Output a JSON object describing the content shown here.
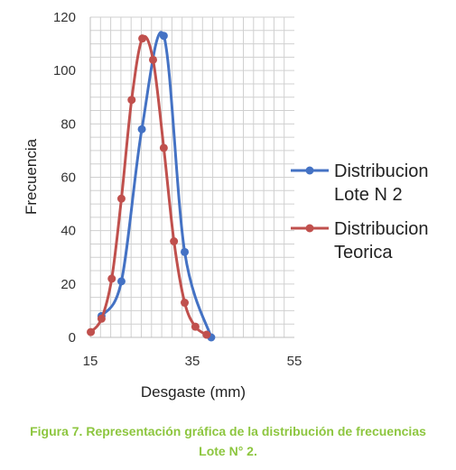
{
  "chart_data": {
    "type": "line",
    "title": "",
    "xlabel": "Desgaste (mm)",
    "ylabel": "Frecuencia",
    "xlim": [
      15,
      55
    ],
    "ylim": [
      0,
      120
    ],
    "xticks": [
      "15",
      "35",
      "55"
    ],
    "yticks": [
      "0",
      "20",
      "40",
      "60",
      "80",
      "100",
      "120"
    ],
    "grid": true,
    "smooth": true,
    "legend_position": "right",
    "series": [
      {
        "name": "Distribucion Lote N 2",
        "legend_lines": [
          "Distribucion",
          "Lote N 2"
        ],
        "color": "#4472c4",
        "x": [
          17.2,
          21.1,
          25.1,
          29.4,
          33.5,
          38.7
        ],
        "y": [
          8,
          21,
          78,
          113,
          32,
          0
        ]
      },
      {
        "name": "Distribucion Teorica",
        "legend_lines": [
          "Distribucion",
          "Teorica"
        ],
        "color": "#c0504d",
        "x": [
          15.1,
          17.2,
          19.2,
          21.1,
          23.1,
          25.2,
          27.3,
          29.4,
          31.4,
          33.5,
          35.6,
          37.8
        ],
        "y": [
          2,
          7,
          22,
          52,
          89,
          112,
          104,
          71,
          36,
          13,
          4,
          1
        ]
      }
    ]
  },
  "caption": {
    "line1": "Figura 7. Representación gráfica de la distribución de frecuencias",
    "line2": "Lote N° 2."
  }
}
